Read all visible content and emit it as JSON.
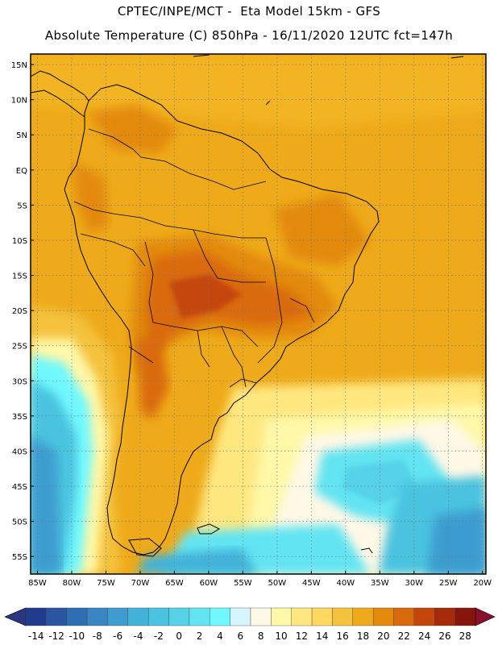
{
  "header": {
    "line1": "CPTEC/INPE/MCT -  Eta Model 15km - GFS",
    "line2": "Absolute Temperature (C) 850hPa - 16/11/2020 12UTC fct=147h"
  },
  "map": {
    "lat_labels": [
      "15N",
      "10N",
      "5N",
      "EQ",
      "5S",
      "10S",
      "15S",
      "20S",
      "25S",
      "30S",
      "35S",
      "40S",
      "45S",
      "50S",
      "55S"
    ],
    "lon_labels": [
      "85W",
      "80W",
      "75W",
      "70W",
      "65W",
      "60W",
      "55W",
      "50W",
      "45W",
      "40W",
      "35W",
      "30W",
      "25W",
      "20W"
    ],
    "lat_range": [
      -57.5,
      16.5
    ],
    "lon_range": [
      -86.0,
      -19.5
    ],
    "grid": true,
    "contour_fill": "absolute temperature 850hPa"
  },
  "colorbar": {
    "labels": [
      "-14",
      "-12",
      "-10",
      "-8",
      "-6",
      "-4",
      "-2",
      "0",
      "2",
      "4",
      "6",
      "8",
      "10",
      "12",
      "14",
      "16",
      "18",
      "20",
      "22",
      "24",
      "26",
      "28"
    ],
    "colors": [
      "#203c8c",
      "#2a55a0",
      "#2f6eb2",
      "#3a86c2",
      "#3e9ccf",
      "#43b2d9",
      "#4ac3e0",
      "#55d2e8",
      "#62e4f2",
      "#6ff8ff",
      "#d6f6ff",
      "#fff8e6",
      "#fff8a8",
      "#ffe780",
      "#ffd860",
      "#f4c23c",
      "#eeaa1a",
      "#e38a0c",
      "#d96a0c",
      "#c4460a",
      "#a42a0a",
      "#86160c"
    ],
    "under_color": "#2a3680",
    "over_color": "#8a0f2e"
  }
}
